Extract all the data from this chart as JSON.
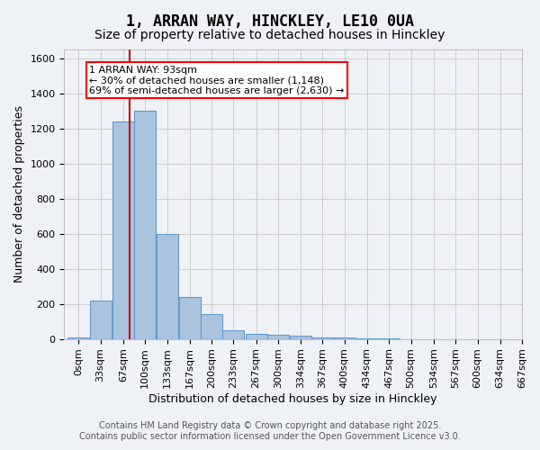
{
  "title": "1, ARRAN WAY, HINCKLEY, LE10 0UA",
  "subtitle": "Size of property relative to detached houses in Hinckley",
  "xlabel": "Distribution of detached houses by size in Hinckley",
  "ylabel": "Number of detached properties",
  "bin_labels": [
    "0sqm",
    "33sqm",
    "67sqm",
    "100sqm",
    "133sqm",
    "167sqm",
    "200sqm",
    "233sqm",
    "267sqm",
    "300sqm",
    "334sqm",
    "367sqm",
    "400sqm",
    "434sqm",
    "467sqm",
    "500sqm",
    "534sqm",
    "567sqm",
    "600sqm",
    "634sqm",
    "667sqm"
  ],
  "bin_edges": [
    0,
    33,
    67,
    100,
    133,
    167,
    200,
    233,
    267,
    300,
    334,
    367,
    400,
    434,
    467,
    500,
    534,
    567,
    600,
    634,
    667
  ],
  "bar_heights": [
    10,
    220,
    1240,
    1300,
    600,
    240,
    140,
    50,
    30,
    25,
    20,
    10,
    10,
    5,
    5,
    0,
    0,
    0,
    0,
    0
  ],
  "bar_color": "#aac4e0",
  "bar_edge_color": "#6699cc",
  "background_color": "#eef2f7",
  "grid_color": "#cccccc",
  "vline_x": 93,
  "vline_color": "#cc0000",
  "ylim": [
    0,
    1650
  ],
  "yticks": [
    0,
    200,
    400,
    600,
    800,
    1000,
    1200,
    1400,
    1600
  ],
  "annotation_text_line1": "1 ARRAN WAY: 93sqm",
  "annotation_text_line2": "← 30% of detached houses are smaller (1,148)",
  "annotation_text_line3": "69% of semi-detached houses are larger (2,630) →",
  "footer_line1": "Contains HM Land Registry data © Crown copyright and database right 2025.",
  "footer_line2": "Contains public sector information licensed under the Open Government Licence v3.0.",
  "title_fontsize": 12,
  "subtitle_fontsize": 10,
  "axis_label_fontsize": 9,
  "tick_fontsize": 8,
  "annotation_fontsize": 8,
  "footer_fontsize": 7
}
